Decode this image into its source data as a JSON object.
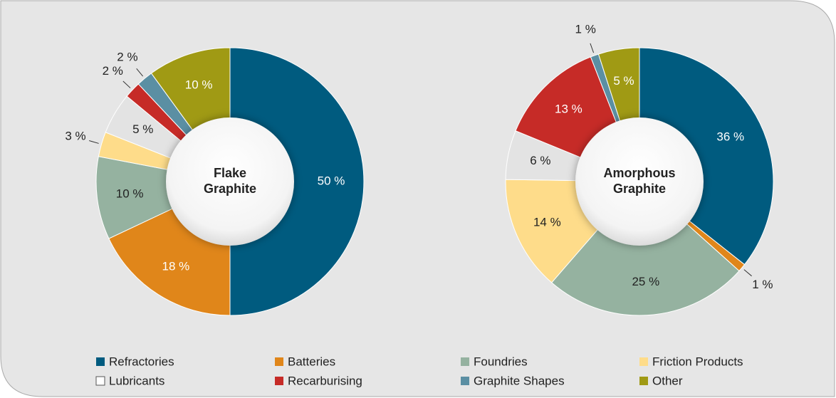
{
  "chart_data": [
    {
      "type": "pie",
      "title": "Flake Graphite",
      "categories": [
        "Refractories",
        "Batteries",
        "Foundries",
        "Friction Products",
        "Lubricants",
        "Recarburising",
        "Graphite Shapes",
        "Other"
      ],
      "colors": [
        "#005b7f",
        "#e0861a",
        "#95b2a0",
        "#fedc8a",
        "#e3e3e3",
        "#c62b27",
        "#5b8fa3",
        "#a09a14"
      ],
      "values": [
        50,
        18,
        10,
        3,
        5,
        2,
        2,
        10
      ],
      "value_labels": [
        "50 %",
        "18 %",
        "10 %",
        "3 %",
        "5 %",
        "2 %",
        "2 %",
        "10 %"
      ]
    },
    {
      "type": "pie",
      "title": "Amorphous Graphite",
      "values": [
        36,
        1,
        25,
        14,
        6,
        13,
        1,
        5
      ],
      "value_labels": [
        "36 %",
        "1 %",
        "25 %",
        "14 %",
        "6 %",
        "13 %",
        "1 %",
        "5 %"
      ]
    }
  ]
}
